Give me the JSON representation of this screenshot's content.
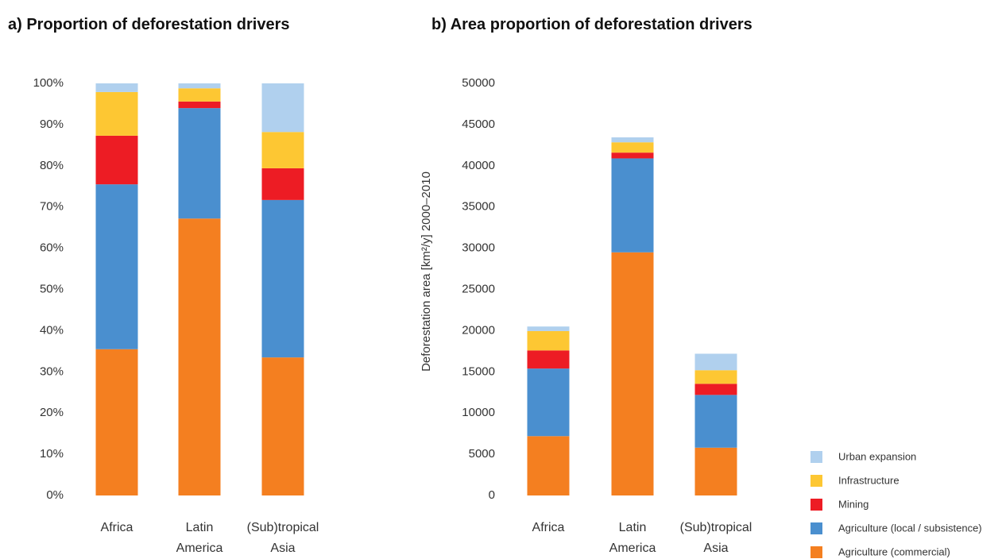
{
  "chart_data": [
    {
      "type": "bar",
      "stacked": true,
      "title": "a) Proportion of deforestation drivers",
      "categories": [
        "Africa",
        "Latin America",
        "(Sub)tropical Asia"
      ],
      "series": [
        {
          "color": "#f47f20",
          "values": [
            35.5,
            67.2,
            33.5
          ]
        },
        {
          "color": "#4a8fcf",
          "values": [
            40,
            26.8,
            38.2
          ]
        },
        {
          "color": "#ed1c24",
          "values": [
            11.8,
            1.6,
            7.7
          ]
        },
        {
          "color": "#fdc733",
          "values": [
            10.6,
            3.2,
            8.8
          ]
        },
        {
          "color": "#b0d0ee",
          "values": [
            2.1,
            1.2,
            11.8
          ]
        }
      ],
      "ylim": [
        0,
        100
      ],
      "yticks": [
        {
          "value": 0,
          "label": "0%"
        },
        {
          "value": 10,
          "label": "10%"
        },
        {
          "value": 20,
          "label": "20%"
        },
        {
          "value": 30,
          "label": "30%"
        },
        {
          "value": 40,
          "label": "40%"
        },
        {
          "value": 50,
          "label": "50%"
        },
        {
          "value": 60,
          "label": "60%"
        },
        {
          "value": 70,
          "label": "70%"
        },
        {
          "value": 80,
          "label": "80%"
        },
        {
          "value": 90,
          "label": "90%"
        },
        {
          "value": 100,
          "label": "100%"
        }
      ]
    },
    {
      "type": "bar",
      "stacked": true,
      "title": "b) Area proportion of deforestation drivers",
      "ylabel": "Deforestation area [km²/y] 2000–2010",
      "categories": [
        "Africa",
        "Latin America",
        "(Sub)tropical Asia"
      ],
      "series": [
        {
          "name": "Agriculture (commercial)",
          "color": "#f47f20",
          "values": [
            7200,
            29500,
            5800
          ]
        },
        {
          "name": "Agriculture (local / subsistence)",
          "color": "#4a8fcf",
          "values": [
            8200,
            11400,
            6400
          ]
        },
        {
          "name": "Mining",
          "color": "#ed1c24",
          "values": [
            2200,
            700,
            1350
          ]
        },
        {
          "name": "Infrastructure",
          "color": "#fdc733",
          "values": [
            2350,
            1250,
            1650
          ]
        },
        {
          "name": "Urban expansion",
          "color": "#b0d0ee",
          "values": [
            550,
            600,
            2000
          ]
        }
      ],
      "ylim": [
        0,
        50000
      ],
      "yticks": [
        0,
        5000,
        10000,
        15000,
        20000,
        25000,
        30000,
        35000,
        40000,
        45000,
        50000
      ],
      "legend": "lower right"
    }
  ]
}
